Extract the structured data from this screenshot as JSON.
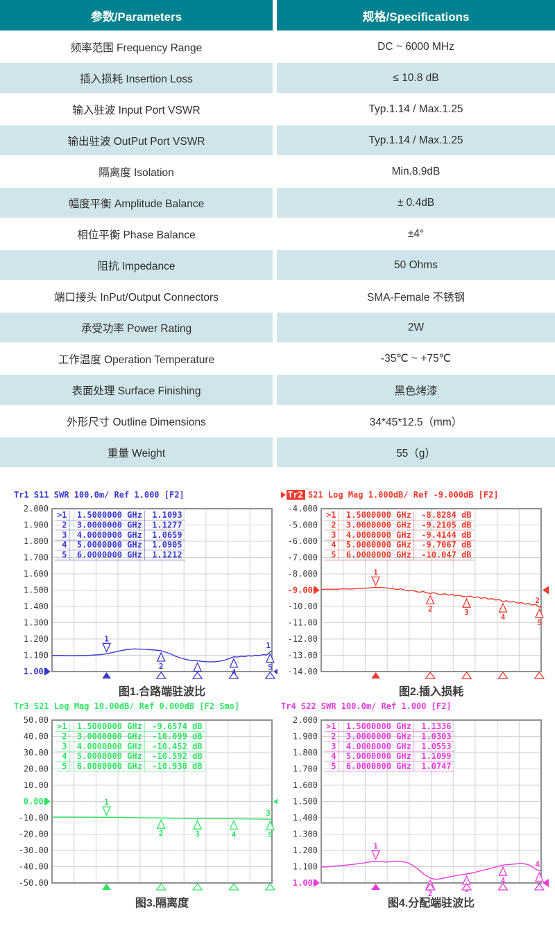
{
  "spec_table": {
    "header": {
      "param": "参数/Parameters",
      "spec": "规格/Specifications"
    },
    "rows": [
      {
        "param": "频率范围 Frequency Range",
        "spec": "DC ~ 6000 MHz"
      },
      {
        "param": "插入损耗 Insertion Loss",
        "spec": "≤ 10.8 dB"
      },
      {
        "param": "输入驻波 Input Port VSWR",
        "spec": "Typ.1.14 / Max.1.25"
      },
      {
        "param": "输出驻波 OutPut Port VSWR",
        "spec": "Typ.1.14 / Max.1.25"
      },
      {
        "param": "隔离度 Isolation",
        "spec": "Min.8.9dB"
      },
      {
        "param": "幅度平衡 Amplitude Balance",
        "spec": "± 0.4dB"
      },
      {
        "param": "相位平衡 Phase Balance",
        "spec": "±4°"
      },
      {
        "param": "阻抗 Impedance",
        "spec": "50 Ohms"
      },
      {
        "param": "端口接头 InPut/Output Connectors",
        "spec": "SMA-Female 不锈钢"
      },
      {
        "param": "承受功率 Power Rating",
        "spec": "2W"
      },
      {
        "param": "工作温度 Operation Temperature",
        "spec": "-35℃ ~ +75℃"
      },
      {
        "param": "表面处理 Surface Finishing",
        "spec": "黑色烤漆"
      },
      {
        "param": "外形尺寸 Outline Dimensions",
        "spec": "34*45*12.5（mm）"
      },
      {
        "param": "重量 Weight",
        "spec": "55（g）"
      }
    ],
    "colors": {
      "header_bg": "#00818f",
      "header_text": "#ffffff",
      "row_alt_bg": "#cfe5e9",
      "row_bg": "#ffffff",
      "text": "#303030"
    }
  },
  "chart_data": [
    {
      "type": "line",
      "trace_number": "1",
      "title_tr": "Tr1",
      "title_rest": "S11 SWR 100.0m/ Ref 1.000 [F2]",
      "active": false,
      "caption": "图1.合路端驻波比",
      "color": "#3a3ad0",
      "xlabel": "",
      "ylabel": "SWR",
      "xlim": [
        0,
        6.05
      ],
      "ylim": [
        1.0,
        2.0
      ],
      "y_ticks": [
        "2.000",
        "1.900",
        "1.800",
        "1.700",
        "1.600",
        "1.500",
        "1.400",
        "1.300",
        "1.200",
        "1.100",
        "1.000"
      ],
      "ref_tick_index": 10,
      "ref_value": 1.0,
      "marker_freqs_ghz": [
        1.5,
        3,
        4,
        5,
        6
      ],
      "marker_values": [
        1.1093,
        1.1277,
        1.0659,
        1.0905,
        1.1212
      ],
      "marker_rows": [
        [
          ">1",
          "1.5000000 GHz",
          "1.1093"
        ],
        [
          "2",
          "3.0000000 GHz",
          "1.1277"
        ],
        [
          "3",
          "4.0000000 GHz",
          "1.0659"
        ],
        [
          "4",
          "5.0000000 GHz",
          "1.0905"
        ],
        [
          "5",
          "6.0000000 GHz",
          "1.1212"
        ]
      ],
      "trace": [
        [
          0,
          1.098
        ],
        [
          0.25,
          1.099
        ],
        [
          0.5,
          1.097
        ],
        [
          0.75,
          1.098
        ],
        [
          1,
          1.099
        ],
        [
          1.2,
          1.102
        ],
        [
          1.35,
          1.104
        ],
        [
          1.5,
          1.1093
        ],
        [
          1.65,
          1.116
        ],
        [
          1.8,
          1.124
        ],
        [
          1.95,
          1.131
        ],
        [
          2.1,
          1.136
        ],
        [
          2.25,
          1.139
        ],
        [
          2.4,
          1.138
        ],
        [
          2.55,
          1.137
        ],
        [
          2.7,
          1.134
        ],
        [
          2.85,
          1.132
        ],
        [
          3,
          1.1277
        ],
        [
          3.1,
          1.121
        ],
        [
          3.25,
          1.109
        ],
        [
          3.4,
          1.094
        ],
        [
          3.55,
          1.083
        ],
        [
          3.7,
          1.073
        ],
        [
          3.85,
          1.068
        ],
        [
          4,
          1.0659
        ],
        [
          4.15,
          1.062
        ],
        [
          4.3,
          1.06
        ],
        [
          4.45,
          1.06
        ],
        [
          4.6,
          1.063
        ],
        [
          4.75,
          1.07
        ],
        [
          4.85,
          1.078
        ],
        [
          5,
          1.0905
        ],
        [
          5.1,
          1.089
        ],
        [
          5.2,
          1.094
        ],
        [
          5.3,
          1.092
        ],
        [
          5.4,
          1.097
        ],
        [
          5.5,
          1.095
        ],
        [
          5.6,
          1.1
        ],
        [
          5.7,
          1.098
        ],
        [
          5.8,
          1.104
        ],
        [
          5.9,
          1.102
        ],
        [
          5.95,
          1.11
        ],
        [
          6,
          1.1212
        ],
        [
          6.05,
          1.124
        ]
      ]
    },
    {
      "type": "line",
      "trace_number": "2",
      "title_tr": "Tr2",
      "title_rest": "S21 Log Mag 1.000dB/ Ref -9.000dB [F2]",
      "active": true,
      "caption": "图2.插入损耗",
      "color": "#ef3b2d",
      "xlabel": "",
      "ylabel": "dB",
      "xlim": [
        0,
        6.05
      ],
      "ylim": [
        -14.0,
        -4.0
      ],
      "y_ticks": [
        "-4.000",
        "-5.000",
        "-6.000",
        "-7.000",
        "-8.000",
        "-9.000",
        "-10.00",
        "-11.00",
        "-12.00",
        "-13.00",
        "-14.00"
      ],
      "ref_tick_index": 5,
      "ref_value": -9.0,
      "marker_freqs_ghz": [
        1.5,
        3,
        4,
        5,
        6
      ],
      "marker_values": [
        -8.8284,
        -9.2105,
        -9.4144,
        -9.7067,
        -10.047
      ],
      "marker_rows": [
        [
          ">1",
          "1.5000000 GHz",
          "-8.8284 dB"
        ],
        [
          "2",
          "3.0000000 GHz",
          "-9.2105 dB"
        ],
        [
          "3",
          "4.0000000 GHz",
          "-9.4144 dB"
        ],
        [
          "4",
          "5.0000000 GHz",
          "-9.7067 dB"
        ],
        [
          "5",
          "6.0000000 GHz",
          "-10.047 dB"
        ]
      ],
      "trace": [
        [
          0,
          -8.96
        ],
        [
          0.2,
          -8.94
        ],
        [
          0.4,
          -8.95
        ],
        [
          0.6,
          -8.92
        ],
        [
          0.8,
          -8.93
        ],
        [
          1,
          -8.9
        ],
        [
          1.2,
          -8.88
        ],
        [
          1.35,
          -8.86
        ],
        [
          1.5,
          -8.8284
        ],
        [
          1.65,
          -8.84
        ],
        [
          1.8,
          -8.87
        ],
        [
          1.95,
          -8.91
        ],
        [
          2.1,
          -8.96
        ],
        [
          2.2,
          -8.92
        ],
        [
          2.3,
          -9
        ],
        [
          2.4,
          -9.05
        ],
        [
          2.5,
          -9
        ],
        [
          2.6,
          -9.08
        ],
        [
          2.7,
          -9.13
        ],
        [
          2.8,
          -9.08
        ],
        [
          2.9,
          -9.16
        ],
        [
          3,
          -9.2105
        ],
        [
          3.1,
          -9.15
        ],
        [
          3.2,
          -9.24
        ],
        [
          3.3,
          -9.28
        ],
        [
          3.4,
          -9.22
        ],
        [
          3.5,
          -9.31
        ],
        [
          3.6,
          -9.26
        ],
        [
          3.7,
          -9.35
        ],
        [
          3.8,
          -9.31
        ],
        [
          3.9,
          -9.39
        ],
        [
          4,
          -9.4144
        ],
        [
          4.1,
          -9.36
        ],
        [
          4.2,
          -9.45
        ],
        [
          4.3,
          -9.41
        ],
        [
          4.4,
          -9.5
        ],
        [
          4.5,
          -9.46
        ],
        [
          4.6,
          -9.55
        ],
        [
          4.7,
          -9.52
        ],
        [
          4.8,
          -9.61
        ],
        [
          4.9,
          -9.58
        ],
        [
          5,
          -9.7067
        ],
        [
          5.1,
          -9.65
        ],
        [
          5.2,
          -9.74
        ],
        [
          5.3,
          -9.7
        ],
        [
          5.4,
          -9.8
        ],
        [
          5.5,
          -9.76
        ],
        [
          5.6,
          -9.86
        ],
        [
          5.7,
          -9.82
        ],
        [
          5.8,
          -9.92
        ],
        [
          5.9,
          -9.88
        ],
        [
          6,
          -10.047
        ],
        [
          6.05,
          -10
        ]
      ]
    },
    {
      "type": "line",
      "trace_number": "3",
      "title_tr": "Tr3",
      "title_rest": "S21 Log Mag 10.00dB/ Ref 0.000dB [F2 Smo]",
      "active": false,
      "caption": "图3.隔离度",
      "color": "#2fe463",
      "xlabel": "",
      "ylabel": "dB",
      "xlim": [
        0,
        6.05
      ],
      "ylim": [
        -50.0,
        50.0
      ],
      "y_ticks": [
        "50.00",
        "40.00",
        "30.00",
        "20.00",
        "10.00",
        "0.000",
        "-10.00",
        "-20.00",
        "-30.00",
        "-40.00",
        "-50.00"
      ],
      "ref_tick_index": 5,
      "ref_value": 0.0,
      "marker_freqs_ghz": [
        1.5,
        3,
        4,
        5,
        6
      ],
      "marker_values": [
        -9.6574,
        -10.099,
        -10.452,
        -10.592,
        -10.93
      ],
      "marker_rows": [
        [
          ">1",
          "1.5000000 GHz",
          "-9.6574 dB"
        ],
        [
          "2",
          "3.0000000 GHz",
          "-10.099 dB"
        ],
        [
          "3",
          "4.0000000 GHz",
          "-10.452 dB"
        ],
        [
          "4",
          "5.0000000 GHz",
          "-10.592 dB"
        ],
        [
          "5",
          "6.0000000 GHz",
          "-10.930 dB"
        ]
      ],
      "trace": [
        [
          0,
          -9.55
        ],
        [
          0.5,
          -9.58
        ],
        [
          1,
          -9.62
        ],
        [
          1.5,
          -9.6574
        ],
        [
          2,
          -9.8
        ],
        [
          2.5,
          -9.95
        ],
        [
          3,
          -10.099
        ],
        [
          3.5,
          -10.28
        ],
        [
          4,
          -10.452
        ],
        [
          4.5,
          -10.52
        ],
        [
          5,
          -10.592
        ],
        [
          5.5,
          -10.76
        ],
        [
          6,
          -10.93
        ],
        [
          6.05,
          -10.93
        ]
      ]
    },
    {
      "type": "line",
      "trace_number": "4",
      "title_tr": "Tr4",
      "title_rest": "S22 SWR 100.0m/ Ref 1.000 [F2]",
      "active": false,
      "caption": "图4.分配端驻波比",
      "color": "#e93bdb",
      "xlabel": "",
      "ylabel": "SWR",
      "xlim": [
        0,
        6.05
      ],
      "ylim": [
        1.0,
        2.0
      ],
      "y_ticks": [
        "2.000",
        "1.900",
        "1.800",
        "1.700",
        "1.600",
        "1.500",
        "1.400",
        "1.300",
        "1.200",
        "1.100",
        "1.000"
      ],
      "ref_tick_index": 10,
      "ref_value": 1.0,
      "marker_freqs_ghz": [
        1.5,
        3,
        4,
        5,
        6
      ],
      "marker_values": [
        1.1336,
        1.0303,
        1.0553,
        1.1099,
        1.0747
      ],
      "marker_rows": [
        [
          ">1",
          "1.5000000 GHz",
          "1.1336"
        ],
        [
          "2",
          "3.0000000 GHz",
          "1.0303"
        ],
        [
          "3",
          "4.0000000 GHz",
          "1.0553"
        ],
        [
          "4",
          "5.0000000 GHz",
          "1.1099"
        ],
        [
          "5",
          "6.0000000 GHz",
          "1.0747"
        ]
      ],
      "trace": [
        [
          0,
          1.098
        ],
        [
          0.2,
          1.1
        ],
        [
          0.4,
          1.104
        ],
        [
          0.6,
          1.108
        ],
        [
          0.8,
          1.112
        ],
        [
          1,
          1.118
        ],
        [
          1.2,
          1.124
        ],
        [
          1.35,
          1.129
        ],
        [
          1.5,
          1.1336
        ],
        [
          1.65,
          1.131
        ],
        [
          1.8,
          1.128
        ],
        [
          1.95,
          1.131
        ],
        [
          2.1,
          1.134
        ],
        [
          2.25,
          1.131
        ],
        [
          2.4,
          1.122
        ],
        [
          2.55,
          1.104
        ],
        [
          2.7,
          1.078
        ],
        [
          2.85,
          1.05
        ],
        [
          3,
          1.0303
        ],
        [
          3.15,
          1.022
        ],
        [
          3.3,
          1.026
        ],
        [
          3.45,
          1.034
        ],
        [
          3.6,
          1.04
        ],
        [
          3.75,
          1.047
        ],
        [
          3.9,
          1.052
        ],
        [
          4,
          1.0553
        ],
        [
          4.2,
          1.064
        ],
        [
          4.4,
          1.075
        ],
        [
          4.6,
          1.086
        ],
        [
          4.8,
          1.098
        ],
        [
          5,
          1.1099
        ],
        [
          5.2,
          1.114
        ],
        [
          5.4,
          1.118
        ],
        [
          5.5,
          1.119
        ],
        [
          5.6,
          1.117
        ],
        [
          5.7,
          1.112
        ],
        [
          5.8,
          1.1
        ],
        [
          5.9,
          1.085
        ],
        [
          6,
          1.0747
        ],
        [
          6.05,
          1.078
        ]
      ]
    }
  ]
}
